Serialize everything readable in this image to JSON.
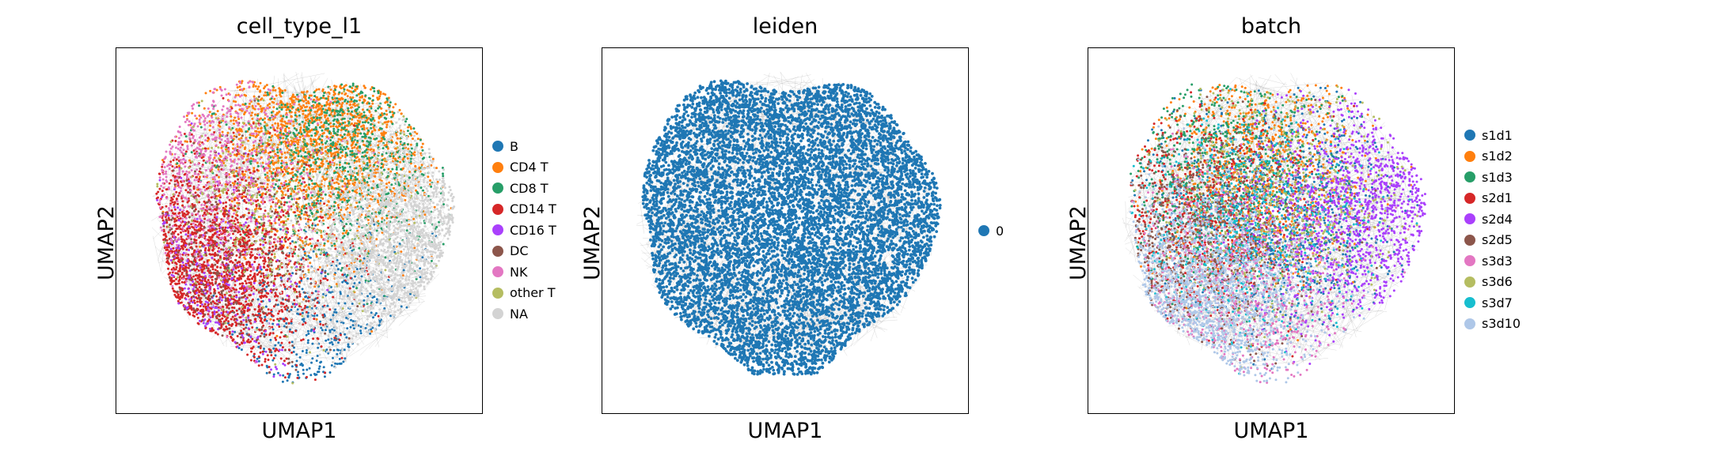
{
  "chart_data": [
    {
      "type": "scatter",
      "title": "cell_type_l1",
      "xlabel": "UMAP1",
      "ylabel": "UMAP2",
      "grid": false,
      "legend_position": "right",
      "categories": [
        {
          "name": "B",
          "color": "#1f77b4",
          "centroid": [
            0.62,
            0.2
          ],
          "weight": 0.05
        },
        {
          "name": "CD4 T",
          "color": "#ff7f0e",
          "centroid": [
            0.55,
            0.78
          ],
          "weight": 0.22
        },
        {
          "name": "CD8 T",
          "color": "#279e68",
          "centroid": [
            0.62,
            0.74
          ],
          "weight": 0.1
        },
        {
          "name": "CD14 T",
          "color": "#d62728",
          "centroid": [
            0.22,
            0.38
          ],
          "weight": 0.22
        },
        {
          "name": "CD16 T",
          "color": "#aa40fc",
          "centroid": [
            0.14,
            0.3
          ],
          "weight": 0.03
        },
        {
          "name": "DC",
          "color": "#8c564b",
          "centroid": [
            0.28,
            0.42
          ],
          "weight": 0.04
        },
        {
          "name": "NK",
          "color": "#e377c2",
          "centroid": [
            0.22,
            0.7
          ],
          "weight": 0.08
        },
        {
          "name": "other T",
          "color": "#b5bd61",
          "centroid": [
            0.45,
            0.55
          ],
          "weight": 0.04
        },
        {
          "name": "NA",
          "color": "#d3d3d3",
          "centroid": [
            0.8,
            0.45
          ],
          "weight": 0.22
        }
      ]
    },
    {
      "type": "scatter",
      "title": "leiden",
      "xlabel": "UMAP1",
      "ylabel": "UMAP2",
      "grid": false,
      "legend_position": "right",
      "categories": [
        {
          "name": "0",
          "color": "#1f77b4",
          "centroid": [
            0.5,
            0.5
          ],
          "weight": 1.0
        }
      ]
    },
    {
      "type": "scatter",
      "title": "batch",
      "xlabel": "UMAP1",
      "ylabel": "UMAP2",
      "grid": false,
      "legend_position": "right",
      "categories": [
        {
          "name": "s1d1",
          "color": "#1f77b4",
          "centroid": [
            0.5,
            0.55
          ],
          "weight": 0.12
        },
        {
          "name": "s1d2",
          "color": "#ff7f0e",
          "centroid": [
            0.45,
            0.7
          ],
          "weight": 0.1
        },
        {
          "name": "s1d3",
          "color": "#279e68",
          "centroid": [
            0.35,
            0.68
          ],
          "weight": 0.08
        },
        {
          "name": "s2d1",
          "color": "#d62728",
          "centroid": [
            0.3,
            0.55
          ],
          "weight": 0.07
        },
        {
          "name": "s2d4",
          "color": "#aa40fc",
          "centroid": [
            0.78,
            0.55
          ],
          "weight": 0.14
        },
        {
          "name": "s2d5",
          "color": "#8c564b",
          "centroid": [
            0.3,
            0.45
          ],
          "weight": 0.09
        },
        {
          "name": "s3d3",
          "color": "#e377c2",
          "centroid": [
            0.4,
            0.35
          ],
          "weight": 0.09
        },
        {
          "name": "s3d6",
          "color": "#b5bd61",
          "centroid": [
            0.5,
            0.6
          ],
          "weight": 0.07
        },
        {
          "name": "s3d7",
          "color": "#17becf",
          "centroid": [
            0.45,
            0.5
          ],
          "weight": 0.06
        },
        {
          "name": "s3d10",
          "color": "#aec7e8",
          "centroid": [
            0.3,
            0.3
          ],
          "weight": 0.18
        }
      ]
    }
  ]
}
